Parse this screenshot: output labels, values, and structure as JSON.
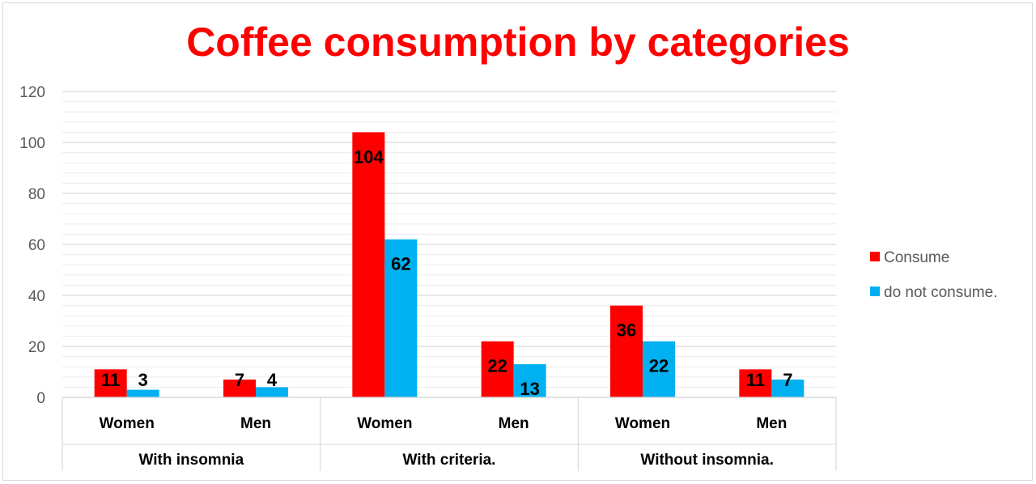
{
  "chart_data": {
    "type": "bar",
    "title": "Coffee consumption by categories",
    "xlabel": "",
    "ylabel": "",
    "ylim": [
      0,
      120
    ],
    "y_ticks": [
      0,
      20,
      40,
      60,
      80,
      100,
      120
    ],
    "grid": true,
    "legend_position": "right",
    "groups": [
      {
        "label": "With insomnia",
        "categories": [
          "Women",
          "Men"
        ]
      },
      {
        "label": "With criteria.",
        "categories": [
          "Women",
          "Men"
        ]
      },
      {
        "label": "Without insomnia.",
        "categories": [
          "Women",
          "Men"
        ]
      }
    ],
    "series": [
      {
        "name": "Consume",
        "color": "#ff0000",
        "values": [
          11,
          7,
          104,
          22,
          36,
          11
        ]
      },
      {
        "name": "do not consume.",
        "color": "#00b0f0",
        "values": [
          3,
          4,
          62,
          13,
          22,
          7
        ]
      }
    ]
  }
}
